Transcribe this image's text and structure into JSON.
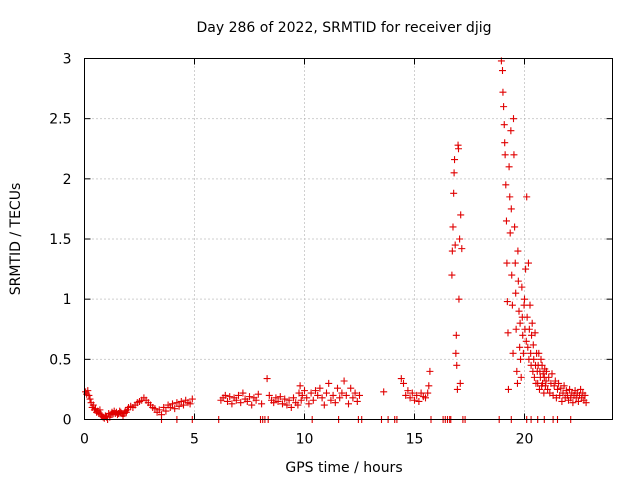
{
  "chart_data": {
    "type": "scatter",
    "title": "Day 286 of 2022, SRMTID for receiver djig",
    "xlabel": "GPS time / hours",
    "ylabel": "SRMTID / TECUs",
    "xlim": [
      0,
      24
    ],
    "ylim": [
      0,
      3
    ],
    "x_ticks": [
      0,
      5,
      10,
      15,
      20
    ],
    "x_tick_labels": [
      "0",
      "5",
      "10",
      "15",
      "20"
    ],
    "y_ticks": [
      0,
      0.5,
      1,
      1.5,
      2,
      2.5,
      3
    ],
    "y_tick_labels": [
      "0",
      "0.5",
      "1",
      "1.5",
      "2",
      "2.5",
      "3"
    ],
    "grid": true,
    "marker": "+",
    "color": "#e00000",
    "series": [
      {
        "name": "SRMTID",
        "points": [
          [
            0.05,
            0.23
          ],
          [
            0.1,
            0.21
          ],
          [
            0.15,
            0.24
          ],
          [
            0.2,
            0.2
          ],
          [
            0.25,
            0.17
          ],
          [
            0.3,
            0.14
          ],
          [
            0.35,
            0.1
          ],
          [
            0.4,
            0.12
          ],
          [
            0.45,
            0.08
          ],
          [
            0.5,
            0.09
          ],
          [
            0.55,
            0.06
          ],
          [
            0.6,
            0.07
          ],
          [
            0.65,
            0.05
          ],
          [
            0.7,
            0.08
          ],
          [
            0.75,
            0.04
          ],
          [
            0.8,
            0.03
          ],
          [
            0.85,
            0.02
          ],
          [
            0.9,
            0.01
          ],
          [
            0.95,
            0.03
          ],
          [
            1.0,
            0.02
          ],
          [
            1.05,
            0.0
          ],
          [
            1.1,
            0.05
          ],
          [
            1.15,
            0.02
          ],
          [
            1.2,
            0.04
          ],
          [
            1.25,
            0.06
          ],
          [
            1.3,
            0.05
          ],
          [
            1.35,
            0.07
          ],
          [
            1.4,
            0.05
          ],
          [
            1.45,
            0.06
          ],
          [
            1.5,
            0.04
          ],
          [
            1.55,
            0.05
          ],
          [
            1.6,
            0.07
          ],
          [
            1.65,
            0.06
          ],
          [
            1.7,
            0.05
          ],
          [
            1.75,
            0.03
          ],
          [
            1.8,
            0.05
          ],
          [
            1.85,
            0.07
          ],
          [
            1.9,
            0.06
          ],
          [
            1.95,
            0.08
          ],
          [
            2.0,
            0.1
          ],
          [
            2.1,
            0.11
          ],
          [
            2.2,
            0.1
          ],
          [
            2.3,
            0.12
          ],
          [
            2.4,
            0.14
          ],
          [
            2.5,
            0.15
          ],
          [
            2.6,
            0.16
          ],
          [
            2.7,
            0.18
          ],
          [
            2.8,
            0.16
          ],
          [
            2.9,
            0.14
          ],
          [
            3.0,
            0.12
          ],
          [
            3.1,
            0.1
          ],
          [
            3.2,
            0.09
          ],
          [
            3.3,
            0.06
          ],
          [
            3.4,
            0.08
          ],
          [
            3.5,
            0.04
          ],
          [
            3.6,
            0.1
          ],
          [
            3.7,
            0.07
          ],
          [
            3.8,
            0.12
          ],
          [
            3.9,
            0.1
          ],
          [
            4.0,
            0.13
          ],
          [
            4.1,
            0.09
          ],
          [
            4.2,
            0.14
          ],
          [
            4.3,
            0.11
          ],
          [
            4.4,
            0.15
          ],
          [
            4.5,
            0.12
          ],
          [
            4.6,
            0.16
          ],
          [
            4.7,
            0.14
          ],
          [
            4.8,
            0.13
          ],
          [
            4.9,
            0.17
          ],
          [
            3.5,
            0.0
          ],
          [
            4.2,
            0.0
          ],
          [
            4.9,
            0.0
          ],
          [
            6.1,
            0.0
          ],
          [
            6.2,
            0.16
          ],
          [
            6.3,
            0.18
          ],
          [
            6.4,
            0.2
          ],
          [
            6.5,
            0.15
          ],
          [
            6.6,
            0.19
          ],
          [
            6.7,
            0.13
          ],
          [
            6.8,
            0.18
          ],
          [
            6.9,
            0.16
          ],
          [
            7.0,
            0.2
          ],
          [
            7.1,
            0.14
          ],
          [
            7.2,
            0.22
          ],
          [
            7.3,
            0.17
          ],
          [
            7.4,
            0.15
          ],
          [
            7.5,
            0.19
          ],
          [
            7.6,
            0.12
          ],
          [
            7.7,
            0.18
          ],
          [
            7.8,
            0.16
          ],
          [
            7.9,
            0.21
          ],
          [
            8.0,
            0.0
          ],
          [
            8.05,
            0.13
          ],
          [
            8.1,
            0.0
          ],
          [
            8.2,
            0.0
          ],
          [
            8.3,
            0.34
          ],
          [
            8.35,
            0.0
          ],
          [
            8.4,
            0.2
          ],
          [
            8.5,
            0.16
          ],
          [
            8.6,
            0.14
          ],
          [
            8.7,
            0.18
          ],
          [
            8.8,
            0.15
          ],
          [
            8.9,
            0.19
          ],
          [
            9.0,
            0.13
          ],
          [
            9.1,
            0.17
          ],
          [
            9.2,
            0.12
          ],
          [
            9.3,
            0.16
          ],
          [
            9.4,
            0.1
          ],
          [
            9.5,
            0.18
          ],
          [
            9.6,
            0.14
          ],
          [
            9.7,
            0.12
          ],
          [
            9.75,
            0.22
          ],
          [
            9.8,
            0.28
          ],
          [
            9.85,
            0.16
          ],
          [
            9.9,
            0.2
          ],
          [
            10.0,
            0.24
          ],
          [
            10.1,
            0.18
          ],
          [
            10.2,
            0.13
          ],
          [
            10.3,
            0.22
          ],
          [
            10.35,
            0.0
          ],
          [
            10.4,
            0.16
          ],
          [
            10.5,
            0.24
          ],
          [
            10.6,
            0.2
          ],
          [
            10.7,
            0.26
          ],
          [
            10.8,
            0.18
          ],
          [
            10.9,
            0.12
          ],
          [
            11.0,
            0.22
          ],
          [
            11.1,
            0.3
          ],
          [
            11.2,
            0.16
          ],
          [
            11.3,
            0.2
          ],
          [
            11.4,
            0.14
          ],
          [
            11.5,
            0.26
          ],
          [
            11.55,
            0.0
          ],
          [
            11.6,
            0.18
          ],
          [
            11.7,
            0.22
          ],
          [
            11.8,
            0.32
          ],
          [
            11.9,
            0.2
          ],
          [
            12.0,
            0.13
          ],
          [
            12.1,
            0.26
          ],
          [
            12.2,
            0.18
          ],
          [
            12.3,
            0.22
          ],
          [
            12.4,
            0.15
          ],
          [
            12.5,
            0.2
          ],
          [
            12.6,
            0.0
          ],
          [
            12.45,
            0.0
          ],
          [
            13.5,
            0.0
          ],
          [
            13.6,
            0.23
          ],
          [
            13.8,
            0.0
          ],
          [
            14.1,
            0.0
          ],
          [
            14.2,
            0.0
          ],
          [
            14.4,
            0.34
          ],
          [
            14.5,
            0.3
          ],
          [
            14.6,
            0.2
          ],
          [
            14.7,
            0.24
          ],
          [
            14.8,
            0.18
          ],
          [
            14.9,
            0.22
          ],
          [
            15.0,
            0.16
          ],
          [
            15.1,
            0.2
          ],
          [
            15.2,
            0.15
          ],
          [
            15.3,
            0.22
          ],
          [
            15.4,
            0.19
          ],
          [
            15.5,
            0.18
          ],
          [
            15.6,
            0.22
          ],
          [
            15.65,
            0.28
          ],
          [
            15.7,
            0.4
          ],
          [
            15.75,
            0.0
          ],
          [
            16.3,
            0.0
          ],
          [
            16.4,
            0.0
          ],
          [
            16.5,
            0.0
          ],
          [
            16.6,
            0.0
          ],
          [
            16.65,
            0.0
          ],
          [
            16.7,
            1.2
          ],
          [
            16.72,
            1.4
          ],
          [
            16.75,
            1.6
          ],
          [
            16.78,
            1.88
          ],
          [
            16.8,
            2.05
          ],
          [
            16.82,
            2.16
          ],
          [
            16.85,
            1.45
          ],
          [
            16.88,
            0.55
          ],
          [
            16.9,
            0.7
          ],
          [
            16.92,
            0.45
          ],
          [
            16.95,
            0.25
          ],
          [
            16.98,
            2.28
          ],
          [
            17.0,
            2.25
          ],
          [
            17.02,
            1.0
          ],
          [
            17.05,
            1.5
          ],
          [
            17.08,
            0.3
          ],
          [
            17.1,
            1.7
          ],
          [
            17.15,
            1.42
          ],
          [
            17.2,
            0.0
          ],
          [
            17.3,
            0.0
          ],
          [
            18.85,
            0.0
          ],
          [
            18.95,
            2.98
          ],
          [
            19.0,
            2.9
          ],
          [
            19.02,
            2.72
          ],
          [
            19.05,
            2.6
          ],
          [
            19.08,
            2.45
          ],
          [
            19.1,
            2.3
          ],
          [
            19.12,
            2.2
          ],
          [
            19.15,
            1.95
          ],
          [
            19.18,
            1.65
          ],
          [
            19.2,
            1.3
          ],
          [
            19.22,
            0.98
          ],
          [
            19.25,
            0.72
          ],
          [
            19.27,
            0.25
          ],
          [
            19.3,
            2.1
          ],
          [
            19.33,
            1.85
          ],
          [
            19.35,
            1.55
          ],
          [
            19.38,
            2.4
          ],
          [
            19.4,
            1.75
          ],
          [
            19.42,
            1.2
          ],
          [
            19.45,
            0.95
          ],
          [
            19.48,
            0.55
          ],
          [
            19.5,
            2.5
          ],
          [
            19.52,
            2.2
          ],
          [
            19.55,
            1.6
          ],
          [
            19.58,
            1.3
          ],
          [
            19.6,
            1.05
          ],
          [
            19.62,
            0.75
          ],
          [
            19.65,
            0.4
          ],
          [
            19.68,
            0.3
          ],
          [
            19.7,
            1.4
          ],
          [
            19.72,
            1.15
          ],
          [
            19.75,
            0.9
          ],
          [
            19.78,
            0.6
          ],
          [
            19.8,
            0.8
          ],
          [
            19.82,
            0.5
          ],
          [
            19.85,
            0.35
          ],
          [
            19.88,
            1.1
          ],
          [
            19.9,
            0.85
          ],
          [
            19.92,
            0.7
          ],
          [
            19.95,
            0.55
          ],
          [
            19.98,
            0.95
          ],
          [
            20.0,
            1.0
          ],
          [
            20.02,
            0.75
          ],
          [
            20.05,
            1.25
          ],
          [
            20.08,
            0.65
          ],
          [
            20.1,
            1.85
          ],
          [
            20.12,
            0.85
          ],
          [
            20.15,
            0.6
          ],
          [
            20.18,
            1.3
          ],
          [
            20.2,
            0.5
          ],
          [
            20.22,
            0.75
          ],
          [
            20.25,
            0.95
          ],
          [
            20.28,
            0.55
          ],
          [
            20.3,
            0.45
          ],
          [
            20.32,
            0.7
          ],
          [
            20.35,
            0.8
          ],
          [
            20.38,
            0.4
          ],
          [
            20.4,
            0.62
          ],
          [
            20.42,
            0.5
          ],
          [
            20.45,
            0.35
          ],
          [
            20.48,
            0.72
          ],
          [
            20.5,
            0.45
          ],
          [
            20.52,
            0.3
          ],
          [
            20.55,
            0.55
          ],
          [
            20.58,
            0.4
          ],
          [
            20.6,
            0.3
          ],
          [
            20.62,
            0.45
          ],
          [
            20.65,
            0.55
          ],
          [
            20.68,
            0.25
          ],
          [
            20.7,
            0.4
          ],
          [
            20.72,
            0.35
          ],
          [
            20.75,
            0.5
          ],
          [
            20.78,
            0.28
          ],
          [
            20.8,
            0.45
          ],
          [
            20.82,
            0.3
          ],
          [
            20.85,
            0.38
          ],
          [
            20.88,
            0.22
          ],
          [
            20.9,
            0.35
          ],
          [
            20.92,
            0.42
          ],
          [
            20.95,
            0.28
          ],
          [
            20.98,
            0.32
          ],
          [
            21.0,
            0.4
          ],
          [
            21.05,
            0.25
          ],
          [
            21.1,
            0.35
          ],
          [
            21.15,
            0.22
          ],
          [
            21.2,
            0.3
          ],
          [
            21.25,
            0.38
          ],
          [
            21.3,
            0.2
          ],
          [
            21.35,
            0.28
          ],
          [
            21.4,
            0.32
          ],
          [
            21.45,
            0.18
          ],
          [
            21.5,
            0.25
          ],
          [
            21.55,
            0.3
          ],
          [
            21.6,
            0.2
          ],
          [
            21.65,
            0.26
          ],
          [
            21.7,
            0.15
          ],
          [
            21.75,
            0.22
          ],
          [
            21.8,
            0.28
          ],
          [
            21.85,
            0.18
          ],
          [
            21.9,
            0.24
          ],
          [
            21.95,
            0.2
          ],
          [
            22.0,
            0.16
          ],
          [
            22.05,
            0.25
          ],
          [
            22.1,
            0.18
          ],
          [
            22.15,
            0.22
          ],
          [
            22.2,
            0.14
          ],
          [
            22.25,
            0.2
          ],
          [
            22.3,
            0.24
          ],
          [
            22.35,
            0.18
          ],
          [
            22.4,
            0.22
          ],
          [
            22.45,
            0.15
          ],
          [
            22.5,
            0.2
          ],
          [
            22.55,
            0.25
          ],
          [
            22.6,
            0.18
          ],
          [
            22.65,
            0.22
          ],
          [
            22.7,
            0.16
          ],
          [
            22.75,
            0.2
          ],
          [
            22.8,
            0.14
          ],
          [
            19.4,
            0.0
          ],
          [
            20.1,
            0.0
          ],
          [
            20.3,
            0.0
          ],
          [
            20.6,
            0.0
          ],
          [
            20.9,
            0.0
          ],
          [
            21.3,
            0.0
          ],
          [
            21.5,
            0.0
          ],
          [
            22.1,
            0.0
          ]
        ]
      }
    ]
  }
}
